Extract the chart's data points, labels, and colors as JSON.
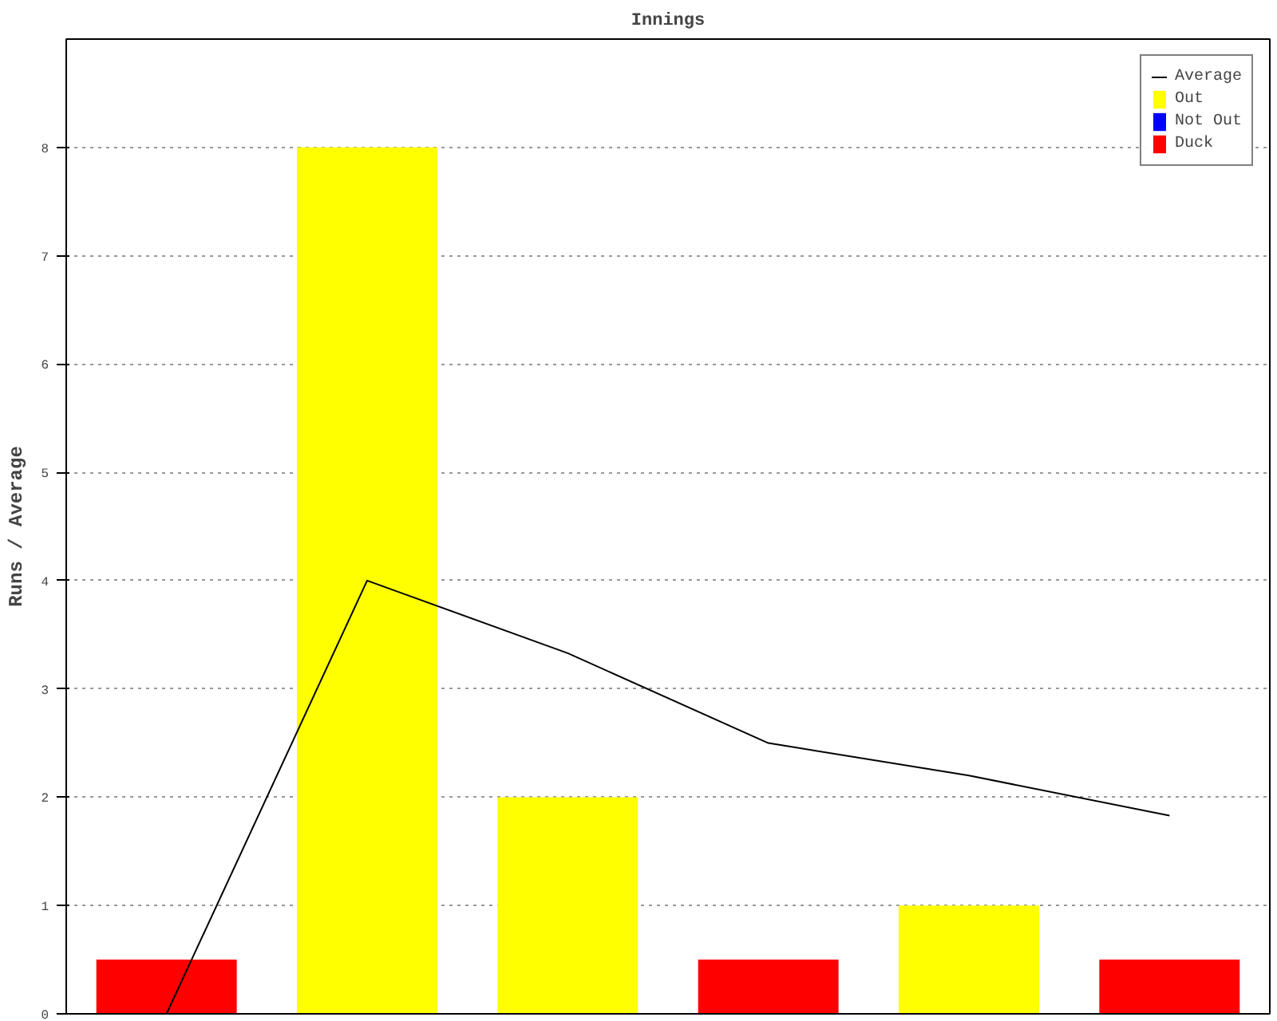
{
  "chart_data": {
    "type": "bar",
    "title": "Innings",
    "ylabel": "Runs / Average",
    "categories": [
      null,
      null,
      null,
      null,
      null,
      null
    ],
    "series": [
      {
        "name": "Average",
        "type": "line",
        "color": "#000000",
        "values": [
          0,
          4,
          3.33,
          2.5,
          2.2,
          1.83
        ]
      },
      {
        "name": "Out",
        "color": "#ffff00",
        "values": [
          null,
          8,
          2,
          null,
          1,
          null
        ]
      },
      {
        "name": "Not Out",
        "color": "#0000ff",
        "values": [
          null,
          null,
          null,
          null,
          null,
          null
        ]
      },
      {
        "name": "Duck",
        "color": "#ff0000",
        "values": [
          0.5,
          null,
          null,
          0.5,
          null,
          0.5
        ]
      }
    ],
    "ylim": [
      0,
      9
    ],
    "yticks": [
      0,
      1,
      2,
      3,
      4,
      5,
      6,
      7,
      8
    ],
    "grid": "y",
    "legend": "top right",
    "marker": "none",
    "line_style": "solid"
  }
}
